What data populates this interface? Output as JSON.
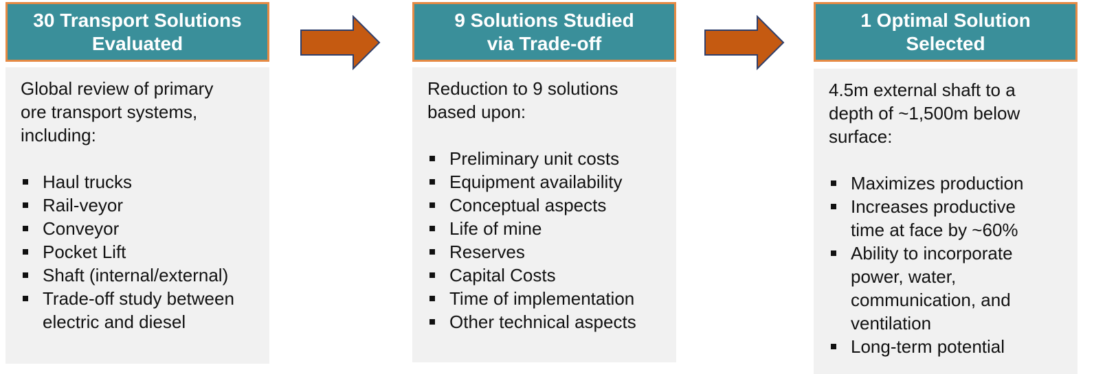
{
  "columns": [
    {
      "title": "30 Transport Solutions\nEvaluated",
      "intro": "Global review of primary\nore transport systems,\nincluding:",
      "bullets": [
        "Haul trucks",
        "Rail-veyor",
        "Conveyor",
        "Pocket Lift",
        "Shaft (internal/external)",
        "Trade-off study between\nelectric and diesel"
      ]
    },
    {
      "title": "9 Solutions Studied\nvia Trade-off",
      "intro": "Reduction to 9 solutions\nbased upon:",
      "bullets": [
        "Preliminary unit costs",
        "Equipment availability",
        "Conceptual aspects",
        "Life of mine",
        "Reserves",
        "Capital Costs",
        "Time of implementation",
        "Other technical aspects"
      ]
    },
    {
      "title": "1 Optimal Solution\nSelected",
      "intro": "4.5m external shaft to a\ndepth of ~1,500m below\nsurface:",
      "bullets": [
        "Maximizes production",
        "Increases productive\ntime at face by ~60%",
        "Ability to incorporate\npower, water,\ncommunication, and\nventilation",
        "Long-term potential"
      ]
    }
  ]
}
